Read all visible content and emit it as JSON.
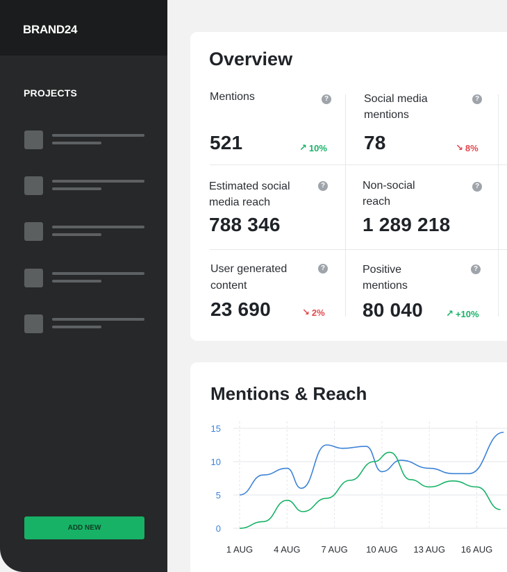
{
  "sidebar": {
    "brand": "BRAND24",
    "projects_title": "PROJECTS",
    "add_new_label": "ADD NEW",
    "project_count": 5
  },
  "overview": {
    "title": "Overview",
    "metrics": [
      {
        "label": "Mentions",
        "value": "521",
        "trend": "10%",
        "direction": "up"
      },
      {
        "label": "Social media mentions",
        "value": "78",
        "trend": "8%",
        "direction": "down"
      },
      {
        "label": "Estimated social media reach",
        "value": "788 346"
      },
      {
        "label": "Non-social reach",
        "value": "1 289 218"
      },
      {
        "label": "User generated content",
        "value": "23 690",
        "trend": "2%",
        "direction": "down"
      },
      {
        "label": "Positive mentions",
        "value": "80 040",
        "trend": "+10%",
        "direction": "up"
      }
    ],
    "help_glyph": "?"
  },
  "mentions_reach": {
    "title": "Mentions & Reach"
  },
  "chart_data": {
    "type": "line",
    "title": "Mentions & Reach",
    "x": [
      1,
      2,
      3,
      4,
      5,
      6,
      7,
      8,
      9,
      10,
      11,
      12,
      13,
      14,
      15,
      16,
      17,
      18
    ],
    "x_tick_labels": [
      "1 AUG",
      "4 AUG",
      "7 AUG",
      "10 AUG",
      "13 AUG",
      "16 AUG"
    ],
    "x_tick_positions": [
      1,
      4,
      7,
      10,
      13,
      16
    ],
    "ylim": [
      0,
      15
    ],
    "y_ticks": [
      0,
      5,
      10,
      15
    ],
    "grid": true,
    "series": [
      {
        "values": [
          5,
          8,
          9,
          6,
          12.5,
          12,
          12.3,
          8.5,
          10.2,
          9,
          8.2,
          8.2,
          14.4
        ],
        "x": [
          1,
          2.5,
          4,
          4.9,
          6.5,
          7.5,
          9,
          10,
          11.2,
          13,
          14.5,
          15.5,
          17.7
        ],
        "color": "#3b82d6"
      },
      {
        "values": [
          0,
          1,
          4.2,
          2.5,
          4.5,
          7.2,
          10,
          11.4,
          7.3,
          6.2,
          7.1,
          6.2,
          2.8
        ],
        "x": [
          1,
          2.5,
          4,
          5,
          6.5,
          8,
          9.5,
          10.5,
          11.8,
          13,
          14.5,
          16,
          17.5
        ],
        "color": "#17b266"
      }
    ],
    "axis_color": "#3b82d6"
  }
}
